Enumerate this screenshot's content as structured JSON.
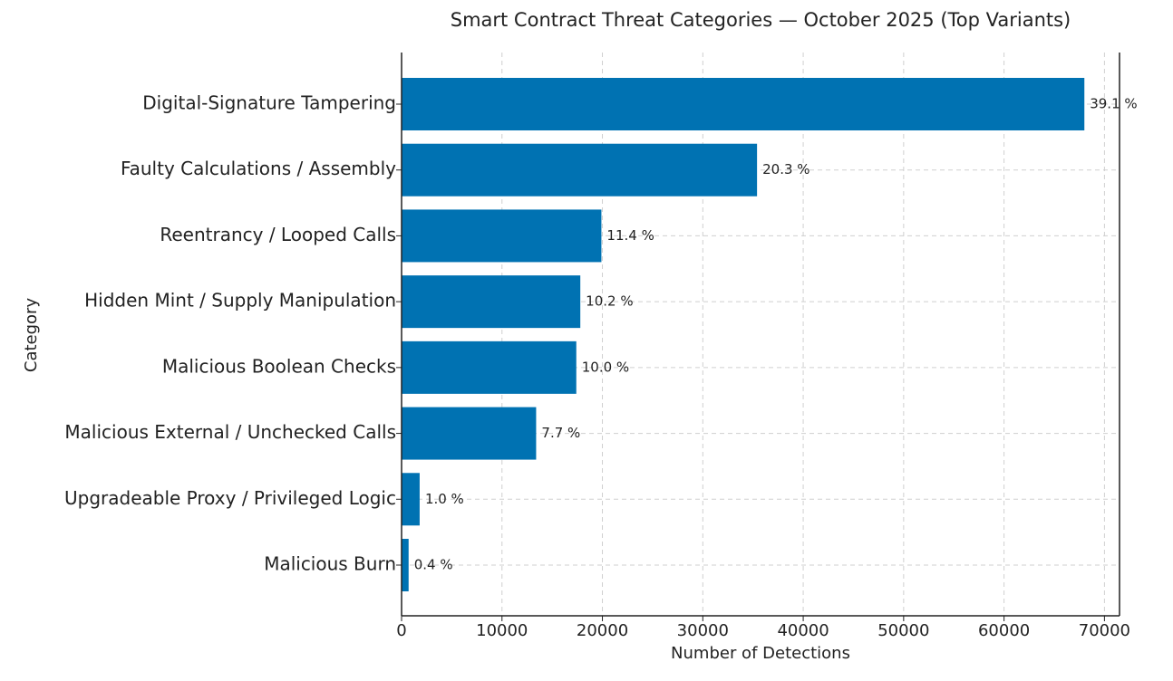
{
  "chart_data": {
    "type": "barh",
    "title": "Smart Contract Threat Categories — October 2025 (Top Variants)",
    "xlabel": "Number of Detections",
    "ylabel": "Category",
    "categories": [
      "Digital-Signature Tampering",
      "Faulty Calculations / Assembly",
      "Reentrancy / Looped Calls",
      "Hidden Mint / Supply Manipulation",
      "Malicious Boolean Checks",
      "Malicious External / Unchecked Calls",
      "Upgradeable Proxy / Privileged Logic",
      "Malicious Burn"
    ],
    "values": [
      68000,
      35400,
      19900,
      17800,
      17400,
      13400,
      1800,
      700
    ],
    "share_labels": [
      "39.1 %",
      "20.3 %",
      "11.4 %",
      "10.2 %",
      "10.0 %",
      "7.7 %",
      "1.0 %",
      "0.4 %"
    ],
    "color": "#0072b2",
    "xlim": [
      0,
      71500
    ],
    "xticks": [
      0,
      10000,
      20000,
      30000,
      40000,
      50000,
      60000,
      70000
    ],
    "grid": true
  }
}
